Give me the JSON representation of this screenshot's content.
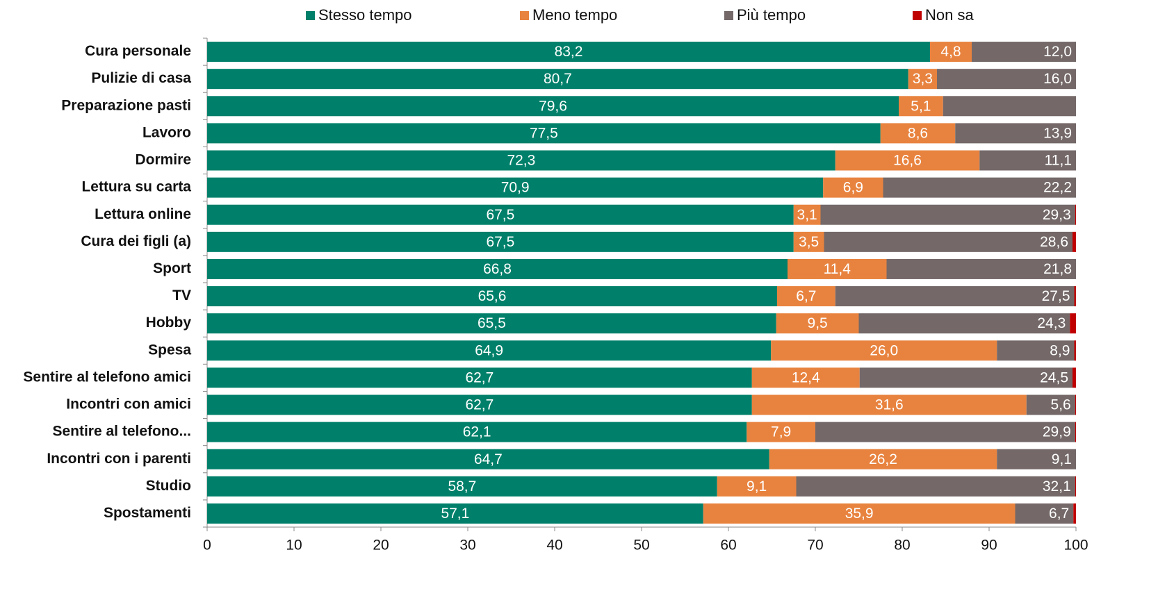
{
  "chart_data": {
    "type": "stacked-bar-horizontal",
    "categories": [
      "Cura personale",
      "Pulizie di casa",
      "Preparazione pasti",
      "Lavoro",
      "Dormire",
      "Lettura su carta",
      "Lettura online",
      "Cura dei figli (a)",
      "Sport",
      "TV",
      "Hobby",
      "Spesa",
      "Sentire al telefono amici",
      "Incontri con amici",
      "Sentire al telefono...",
      "Incontri con i parenti",
      "Studio",
      "Spostamenti"
    ],
    "series": [
      {
        "name": "Stesso tempo",
        "color": "#00806a",
        "values": [
          83.2,
          80.7,
          79.6,
          77.5,
          72.3,
          70.9,
          67.5,
          67.5,
          66.8,
          65.6,
          65.5,
          64.9,
          62.7,
          62.7,
          62.1,
          64.7,
          58.7,
          57.1
        ],
        "value_labels": [
          "83,2",
          "80,7",
          "79,6",
          "77,5",
          "72,3",
          "70,9",
          "67,5",
          "67,5",
          "66,8",
          "65,6",
          "65,5",
          "64,9",
          "62,7",
          "62,7",
          "62,1",
          "64,7",
          "58,7",
          "57,1"
        ]
      },
      {
        "name": "Meno tempo",
        "color": "#e8833f",
        "values": [
          4.8,
          3.3,
          5.1,
          8.6,
          16.6,
          6.9,
          3.1,
          3.5,
          11.4,
          6.7,
          9.5,
          26.0,
          12.4,
          31.6,
          7.9,
          26.2,
          9.1,
          35.9
        ],
        "value_labels": [
          "4,8",
          "3,3",
          "5,1",
          "8,6",
          "16,6",
          "6,9",
          "3,1",
          "3,5",
          "11,4",
          "6,7",
          "9,5",
          "26,0",
          "12,4",
          "31,6",
          "7,9",
          "26,2",
          "9,1",
          "35,9"
        ]
      },
      {
        "name": "Più tempo",
        "color": "#746868",
        "values": [
          12.0,
          16.0,
          15.3,
          13.9,
          11.1,
          22.2,
          29.3,
          28.6,
          21.8,
          27.5,
          24.3,
          8.9,
          24.5,
          5.6,
          29.9,
          9.1,
          32.1,
          6.7
        ],
        "value_labels": [
          "12,0",
          "16,0",
          null,
          "13,9",
          "11,1",
          "22,2",
          "29,3",
          "28,6",
          "21,8",
          "27,5",
          "24,3",
          "8,9",
          "24,5",
          "5,6",
          "29,9",
          "9,1",
          "32,1",
          "6,7"
        ]
      },
      {
        "name": "Non sa",
        "color": "#c00000",
        "values": [
          0,
          0,
          0,
          0,
          0,
          0,
          0.1,
          0.4,
          0,
          0.2,
          0.7,
          0.2,
          0.4,
          0.1,
          0.1,
          0,
          0.1,
          0.3
        ]
      }
    ],
    "xlim": [
      0,
      100
    ],
    "xticks": [
      0,
      10,
      20,
      30,
      40,
      50,
      60,
      70,
      80,
      90,
      100
    ]
  }
}
